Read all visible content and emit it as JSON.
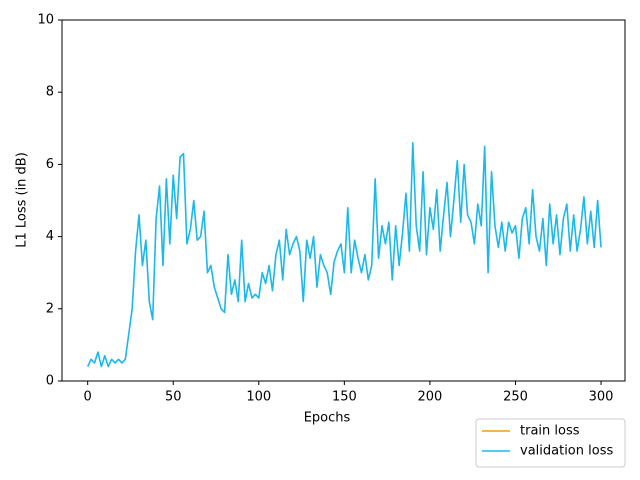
{
  "chart_data": {
    "type": "line",
    "xlabel": "Epochs",
    "ylabel": "L1 Loss (in dB)",
    "xlim": [
      -15,
      314
    ],
    "xticks": [
      0,
      50,
      100,
      150,
      200,
      250,
      300
    ],
    "ylim": [
      0,
      10
    ],
    "yticks": [
      0,
      2,
      4,
      6,
      8,
      10
    ],
    "legend": "lower right",
    "series": [
      {
        "name": "train loss",
        "color": "#f29b1d",
        "x": [],
        "values": []
      },
      {
        "name": "validation loss",
        "color": "#1ab8eb",
        "x": [
          0,
          2,
          4,
          6,
          8,
          10,
          12,
          14,
          16,
          18,
          20,
          22,
          24,
          26,
          28,
          30,
          32,
          34,
          36,
          38,
          40,
          42,
          44,
          46,
          48,
          50,
          52,
          54,
          56,
          58,
          60,
          62,
          64,
          66,
          68,
          70,
          72,
          74,
          76,
          78,
          80,
          82,
          84,
          86,
          88,
          90,
          92,
          94,
          96,
          98,
          100,
          102,
          104,
          106,
          108,
          110,
          112,
          114,
          116,
          118,
          120,
          122,
          124,
          126,
          128,
          130,
          132,
          134,
          136,
          138,
          140,
          142,
          144,
          146,
          148,
          150,
          152,
          154,
          156,
          158,
          160,
          162,
          164,
          166,
          168,
          170,
          172,
          174,
          176,
          178,
          180,
          182,
          184,
          186,
          188,
          190,
          192,
          194,
          196,
          198,
          200,
          202,
          204,
          206,
          208,
          210,
          212,
          214,
          216,
          218,
          220,
          222,
          224,
          226,
          228,
          230,
          232,
          234,
          236,
          238,
          240,
          242,
          244,
          246,
          248,
          250,
          252,
          254,
          256,
          258,
          260,
          262,
          264,
          266,
          268,
          270,
          272,
          274,
          276,
          278,
          280,
          282,
          284,
          286,
          288,
          290,
          292,
          294,
          296,
          298,
          300
        ],
        "values": [
          0.4,
          0.6,
          0.5,
          0.8,
          0.4,
          0.7,
          0.4,
          0.6,
          0.5,
          0.6,
          0.5,
          0.6,
          1.3,
          2.0,
          3.6,
          4.6,
          3.2,
          3.9,
          2.2,
          1.7,
          4.5,
          5.4,
          3.2,
          5.6,
          3.8,
          5.7,
          4.5,
          6.2,
          6.3,
          3.8,
          4.2,
          5.0,
          3.9,
          4.0,
          4.7,
          3.0,
          3.2,
          2.6,
          2.3,
          2.0,
          1.9,
          3.5,
          2.4,
          2.8,
          2.2,
          3.9,
          2.2,
          2.7,
          2.3,
          2.4,
          2.3,
          3.0,
          2.7,
          3.2,
          2.5,
          3.5,
          3.9,
          2.8,
          4.2,
          3.5,
          3.8,
          4.0,
          3.6,
          2.2,
          3.9,
          3.4,
          4.0,
          2.6,
          3.5,
          3.2,
          3.0,
          2.4,
          3.3,
          3.6,
          3.8,
          3.0,
          4.8,
          3.0,
          3.9,
          3.4,
          3.0,
          3.5,
          2.8,
          3.2,
          5.6,
          3.4,
          4.3,
          3.8,
          4.4,
          2.8,
          4.3,
          3.2,
          4.1,
          5.2,
          3.6,
          6.6,
          4.3,
          3.6,
          5.8,
          3.5,
          4.8,
          4.2,
          5.3,
          3.6,
          4.6,
          5.5,
          4.0,
          5.0,
          6.1,
          4.4,
          6.0,
          4.6,
          4.4,
          3.8,
          4.9,
          4.3,
          6.5,
          3.0,
          5.8,
          4.3,
          3.7,
          4.4,
          3.6,
          4.4,
          4.1,
          4.3,
          3.4,
          4.5,
          4.8,
          3.8,
          5.3,
          4.0,
          3.6,
          4.5,
          3.2,
          4.9,
          3.8,
          4.6,
          3.5,
          4.5,
          4.9,
          3.6,
          4.6,
          3.6,
          4.2,
          5.1,
          3.8,
          4.7,
          3.7,
          5.0,
          3.7
        ]
      }
    ]
  }
}
